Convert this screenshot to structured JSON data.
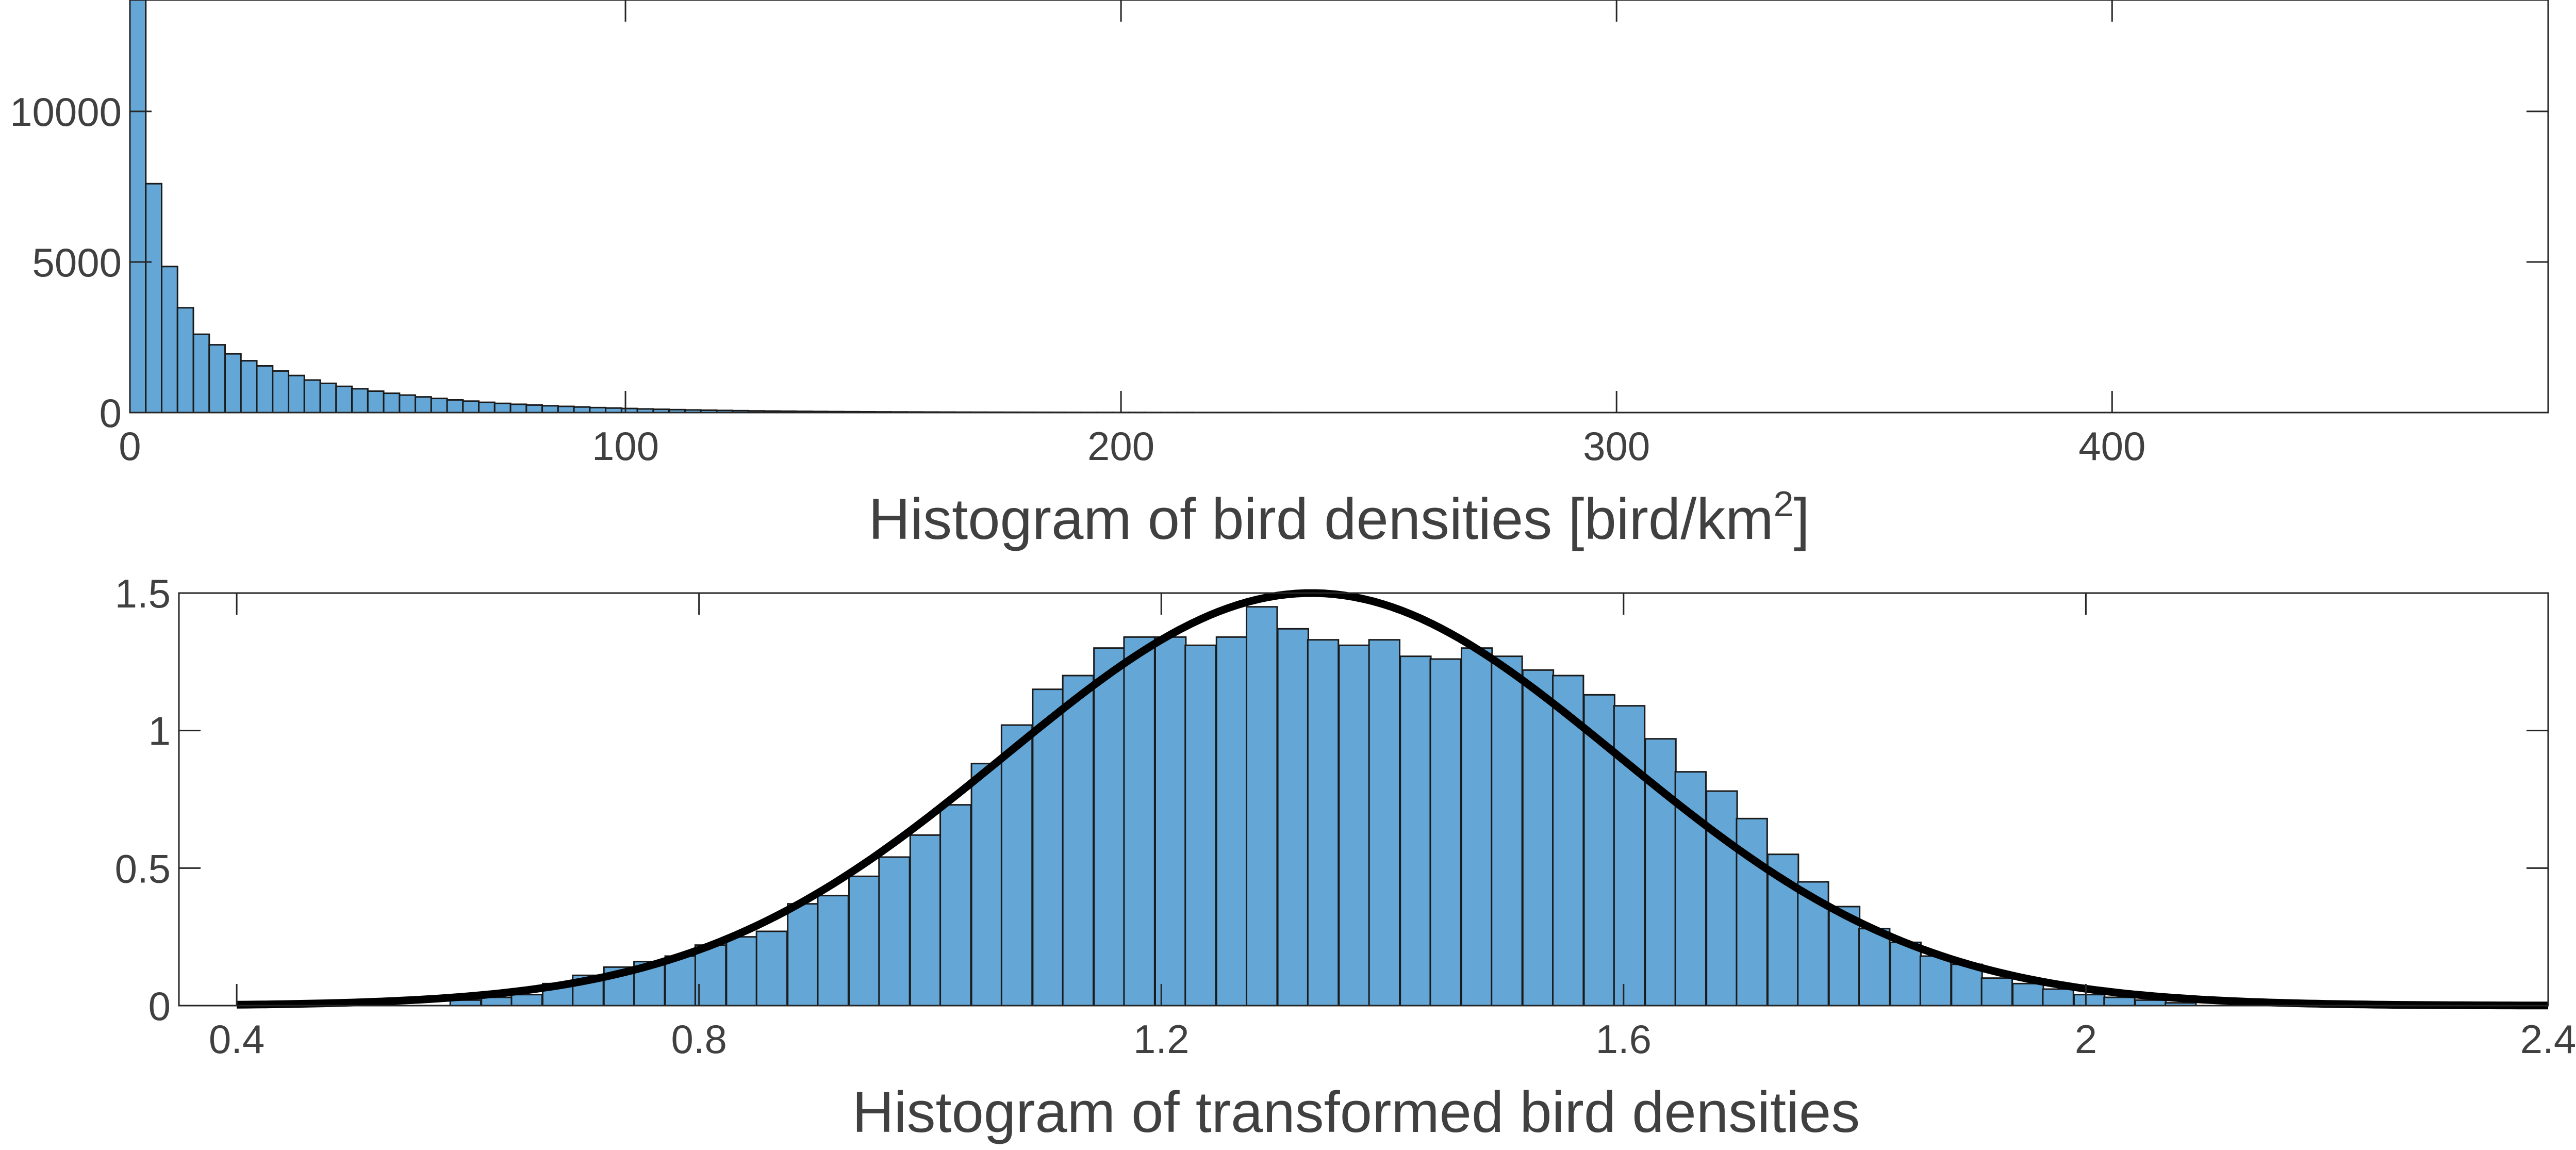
{
  "colors": {
    "bar_fill": "#64a7d7",
    "bar_edge": "#1a1a1a",
    "curve": "#000000",
    "axis": "#262626",
    "text": "#404040"
  },
  "chart_data": [
    {
      "type": "bar",
      "title": "",
      "xlabel": "Histogram of bird densities [bird/km",
      "xlabel_superscript": "2",
      "xlabel_suffix": "]",
      "ylabel": "",
      "xlim": [
        0,
        488
      ],
      "ylim": [
        0,
        13700
      ],
      "x_ticks": [
        0,
        100,
        200,
        300,
        400
      ],
      "x_tick_labels": [
        "0",
        "100",
        "200",
        "300",
        "400"
      ],
      "y_ticks": [
        0,
        5000,
        10000
      ],
      "y_tick_labels": [
        "0",
        "5000",
        "10000"
      ],
      "bin_width": 3.2,
      "bin_start": 0,
      "values": [
        13700,
        7600,
        4850,
        3480,
        2600,
        2250,
        1950,
        1720,
        1550,
        1380,
        1230,
        1080,
        970,
        870,
        790,
        710,
        640,
        580,
        520,
        470,
        420,
        380,
        340,
        305,
        275,
        250,
        225,
        205,
        185,
        165,
        150,
        135,
        120,
        108,
        97,
        87,
        78,
        70,
        63,
        56,
        50,
        45,
        40,
        36,
        32,
        29,
        26,
        23,
        21,
        19,
        17,
        15,
        13,
        12,
        11,
        10,
        9,
        8,
        7,
        6,
        5,
        5,
        4,
        4,
        3,
        3,
        3,
        2,
        2,
        2,
        2,
        2,
        1,
        1,
        1
      ],
      "grid": false,
      "legend": "none"
    },
    {
      "type": "bar",
      "title": "",
      "xlabel": "Histogram of transformed bird densities",
      "ylabel": "",
      "xlim": [
        0.35,
        2.4
      ],
      "ylim": [
        0,
        1.5
      ],
      "x_ticks": [
        0.4,
        0.8,
        1.2,
        1.6,
        2,
        2.4
      ],
      "x_tick_labels": [
        "0.4",
        "0.8",
        "1.2",
        "1.6",
        "2",
        "2.4"
      ],
      "y_ticks": [
        0,
        0.5,
        1,
        1.5
      ],
      "y_tick_labels": [
        "0",
        "0.5",
        "1",
        "1.5"
      ],
      "bin_width": 0.0265,
      "bins": [
        [
          0.598,
          0.02
        ],
        [
          0.625,
          0.03
        ],
        [
          0.651,
          0.04
        ],
        [
          0.678,
          0.08
        ],
        [
          0.704,
          0.11
        ],
        [
          0.731,
          0.14
        ],
        [
          0.757,
          0.16
        ],
        [
          0.784,
          0.18
        ],
        [
          0.81,
          0.22
        ],
        [
          0.837,
          0.25
        ],
        [
          0.863,
          0.27
        ],
        [
          0.89,
          0.37
        ],
        [
          0.916,
          0.4
        ],
        [
          0.943,
          0.47
        ],
        [
          0.969,
          0.54
        ],
        [
          0.996,
          0.62
        ],
        [
          1.022,
          0.73
        ],
        [
          1.049,
          0.88
        ],
        [
          1.075,
          1.02
        ],
        [
          1.102,
          1.15
        ],
        [
          1.128,
          1.2
        ],
        [
          1.155,
          1.3
        ],
        [
          1.181,
          1.34
        ],
        [
          1.208,
          1.34
        ],
        [
          1.234,
          1.31
        ],
        [
          1.261,
          1.34
        ],
        [
          1.287,
          1.45
        ],
        [
          1.314,
          1.37
        ],
        [
          1.34,
          1.33
        ],
        [
          1.367,
          1.31
        ],
        [
          1.393,
          1.33
        ],
        [
          1.42,
          1.27
        ],
        [
          1.446,
          1.26
        ],
        [
          1.473,
          1.3
        ],
        [
          1.499,
          1.27
        ],
        [
          1.526,
          1.22
        ],
        [
          1.552,
          1.2
        ],
        [
          1.579,
          1.13
        ],
        [
          1.605,
          1.09
        ],
        [
          1.632,
          0.97
        ],
        [
          1.658,
          0.85
        ],
        [
          1.685,
          0.78
        ],
        [
          1.711,
          0.68
        ],
        [
          1.738,
          0.55
        ],
        [
          1.764,
          0.45
        ],
        [
          1.791,
          0.36
        ],
        [
          1.817,
          0.28
        ],
        [
          1.844,
          0.23
        ],
        [
          1.87,
          0.18
        ],
        [
          1.897,
          0.15
        ],
        [
          1.923,
          0.1
        ],
        [
          1.95,
          0.08
        ],
        [
          1.976,
          0.06
        ],
        [
          2.003,
          0.04
        ],
        [
          2.029,
          0.03
        ],
        [
          2.056,
          0.02
        ],
        [
          2.082,
          0.01
        ]
      ],
      "fit_curve": {
        "type": "normal_pdf",
        "mean": 1.33,
        "sd": 0.265,
        "peak": 1.5,
        "x_range": [
          0.4,
          2.4
        ]
      },
      "grid": false,
      "legend": "none"
    }
  ]
}
